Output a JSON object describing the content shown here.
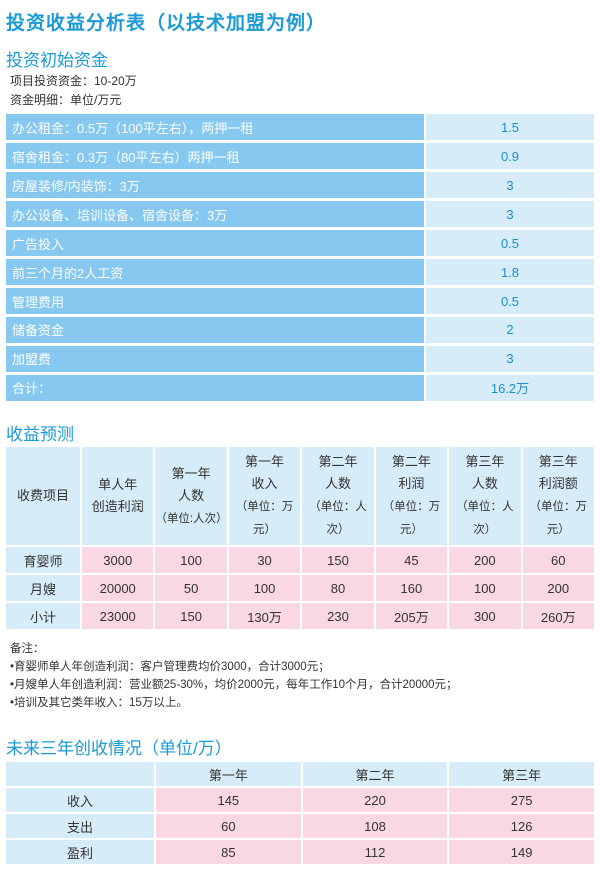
{
  "title": "投资收益分析表（以技术加盟为例）",
  "invest_section": {
    "title": "投资初始资金",
    "line1": "项目投资资金：10-20万",
    "line2": "资金明细：单位/万元",
    "rows": [
      {
        "label": "办公租金：0.5万（100平左右），两押一租",
        "value": "1.5"
      },
      {
        "label": "宿舍租金：0.3万（80平左右）两押一租",
        "value": "0.9"
      },
      {
        "label": "房屋装修/内装饰：3万",
        "value": "3"
      },
      {
        "label": "办公设备、培训设备、宿舍设备：3万",
        "value": "3"
      },
      {
        "label": "广告投入",
        "value": "0.5"
      },
      {
        "label": "前三个月的2人工资",
        "value": "1.8"
      },
      {
        "label": "管理费用",
        "value": "0.5"
      },
      {
        "label": "储备资金",
        "value": "2"
      },
      {
        "label": "加盟费",
        "value": "3"
      },
      {
        "label": "合计：",
        "value": "16.2万"
      }
    ]
  },
  "revenue_section": {
    "title": "收益预测",
    "headers": [
      {
        "l1": "收费项目",
        "l2": "",
        "unit": ""
      },
      {
        "l1": "单人年",
        "l2": "创造利润",
        "unit": ""
      },
      {
        "l1": "第一年",
        "l2": "人数",
        "unit": "（单位:人次）"
      },
      {
        "l1": "第一年",
        "l2": "收入",
        "unit": "（单位：万元）"
      },
      {
        "l1": "第二年",
        "l2": "人数",
        "unit": "（单位：人次）"
      },
      {
        "l1": "第二年",
        "l2": "利润",
        "unit": "（单位：万元）"
      },
      {
        "l1": "第三年",
        "l2": "人数",
        "unit": "（单位：人次）"
      },
      {
        "l1": "第三年",
        "l2": "利润额",
        "unit": "（单位：万元）"
      }
    ],
    "rows": [
      [
        "育婴师",
        "3000",
        "100",
        "30",
        "150",
        "45",
        "200",
        "60"
      ],
      [
        "月嫂",
        "20000",
        "50",
        "100",
        "80",
        "160",
        "100",
        "200"
      ],
      [
        "小计",
        "23000",
        "150",
        "130万",
        "230",
        "205万",
        "300",
        "260万"
      ]
    ]
  },
  "notes": {
    "title": "备注：",
    "items": [
      "•育婴师单人年创造利润：客户管理费均价3000，合计3000元；",
      "•月嫂单人年创造利润：营业额25-30%，均价2000元，每年工作10个月，合计20000元；",
      "•培训及其它类年收入：15万以上。"
    ]
  },
  "future_section": {
    "title": "未来三年创收情况（单位/万）",
    "headers": [
      "",
      "第一年",
      "第二年",
      "第三年"
    ],
    "rows": [
      [
        "收入",
        "145",
        "220",
        "275"
      ],
      [
        "支出",
        "60",
        "108",
        "126"
      ],
      [
        "盈利",
        "85",
        "112",
        "149"
      ]
    ]
  },
  "colors": {
    "accent": "#1b9ad6",
    "label_blue": "#86c8ef",
    "light_blue": "#d6ecf9",
    "pink": "#fad7e5"
  }
}
